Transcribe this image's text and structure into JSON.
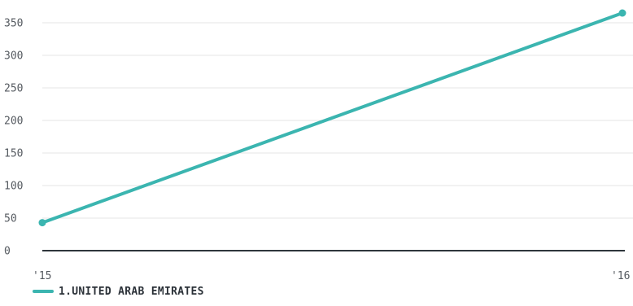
{
  "chart_data": {
    "type": "line",
    "x": [
      "'15",
      "'16"
    ],
    "series": [
      {
        "name": "1.UNITED ARAB EMIRATES",
        "values": [
          43,
          365
        ],
        "color": "#3bb5b0"
      }
    ],
    "ylim": [
      0,
      375
    ],
    "yticks": [
      "0",
      "50",
      "100",
      "150",
      "200",
      "250",
      "300",
      "350"
    ],
    "ytick_values": [
      0,
      50,
      100,
      150,
      200,
      250,
      300,
      350
    ],
    "grid": true,
    "legend_position": "bottom-left",
    "axis_color": "#2e353c",
    "grid_color": "#e6e6e6",
    "tick_color": "#555a60"
  }
}
